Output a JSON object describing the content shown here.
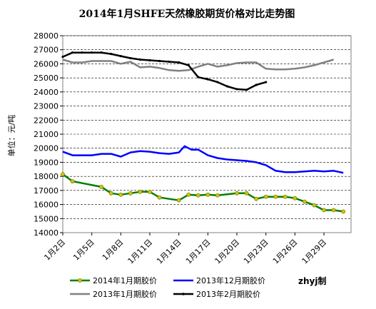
{
  "chart_data": {
    "type": "line",
    "title": "2014年1月SHFE天然橡胶期货价格对比走势图",
    "ylabel": "单位：元/吨",
    "xlabel": "",
    "ylim": [
      14000,
      28000
    ],
    "y_ticks": [
      14000,
      15000,
      16000,
      17000,
      18000,
      19000,
      20000,
      21000,
      22000,
      23000,
      24000,
      25000,
      26000,
      27000,
      28000
    ],
    "x_tick_labels": [
      "1月2日",
      "1月5日",
      "1月8日",
      "1月11日",
      "1月14日",
      "1月17日",
      "1月20日",
      "1月23日",
      "1月26日",
      "1月29日"
    ],
    "x_tick_days": [
      2,
      5,
      8,
      11,
      14,
      17,
      20,
      23,
      26,
      29
    ],
    "x_range_days": [
      2,
      31.8
    ],
    "grid": "horizontal dashed",
    "credit": "zhyj制",
    "series": [
      {
        "name": "2014年1月期胶价",
        "color": "#008000",
        "marker": "#d4c400",
        "x": [
          2,
          3,
          6,
          7,
          8,
          9,
          10,
          11,
          12,
          14,
          15,
          16,
          17,
          18,
          20,
          21,
          22,
          23,
          24,
          25,
          26,
          27,
          28,
          29,
          30,
          31
        ],
        "y": [
          18150,
          17650,
          17250,
          16800,
          16700,
          16800,
          16900,
          16900,
          16500,
          16300,
          16700,
          16650,
          16700,
          16650,
          16800,
          16800,
          16400,
          16550,
          16550,
          16550,
          16450,
          16200,
          15950,
          15600,
          15600,
          15500
        ]
      },
      {
        "name": "2013年12月期胶价",
        "color": "#0000ff",
        "x": [
          2,
          3,
          4,
          5,
          6,
          7,
          8,
          9,
          10,
          11,
          12,
          13,
          14,
          14.6,
          15.3,
          16,
          17,
          18,
          19,
          20,
          21,
          22,
          23,
          24,
          25,
          26,
          27,
          28,
          29,
          30,
          31
        ],
        "y": [
          19750,
          19500,
          19500,
          19500,
          19600,
          19600,
          19400,
          19700,
          19800,
          19750,
          19650,
          19600,
          19700,
          20150,
          19900,
          19900,
          19500,
          19300,
          19200,
          19150,
          19100,
          19000,
          18800,
          18400,
          18300,
          18300,
          18350,
          18400,
          18350,
          18400,
          18250
        ]
      },
      {
        "name": "2013年1月期胶价",
        "color": "#808080",
        "x": [
          2,
          3,
          4,
          5,
          6,
          7,
          8,
          9,
          10,
          11,
          12,
          13,
          14,
          15,
          16,
          17,
          18,
          19,
          20,
          21,
          22,
          23,
          24,
          25,
          26,
          27,
          28,
          29,
          30
        ],
        "y": [
          26300,
          26100,
          26100,
          26200,
          26200,
          26200,
          26000,
          26150,
          25750,
          25800,
          25700,
          25550,
          25500,
          25550,
          25800,
          26000,
          25800,
          25900,
          26050,
          26100,
          26100,
          25650,
          25600,
          25600,
          25650,
          25750,
          25900,
          26100,
          26300
        ]
      },
      {
        "name": "2013年2月期胶价",
        "color": "#000000",
        "x": [
          2,
          3,
          4,
          5,
          6,
          7,
          8,
          9,
          10,
          11,
          12,
          13,
          14,
          15,
          16,
          17,
          18,
          19,
          20,
          21,
          22,
          23
        ],
        "y": [
          26500,
          26800,
          26800,
          26800,
          26800,
          26700,
          26550,
          26400,
          26300,
          26250,
          26200,
          26150,
          26100,
          25900,
          25050,
          24900,
          24700,
          24400,
          24200,
          24150,
          24500,
          24700
        ]
      }
    ]
  }
}
